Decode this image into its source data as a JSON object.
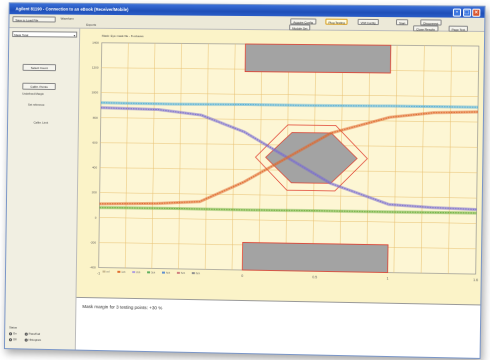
{
  "window": {
    "title": "Agilent 81190 - Connection to an eBook (Receiver/Mobile)"
  },
  "toolbar": {
    "left_button": "Save to Load File",
    "select_value": "Mask Total",
    "subtab": "Waveform",
    "small_label": "Exports",
    "buttons": [
      "Acquire Config",
      "Plug Testing",
      "VIM Config",
      "Start",
      "Disconnect"
    ],
    "row2_buttons": [
      "Module Set",
      "Close Results",
      "Page Test"
    ]
  },
  "sidebar": {
    "buttons": [
      "Select Count",
      "Calibr. Points"
    ],
    "labels": [
      "Undefined Margin",
      "Set reference",
      "Calibr. Limit"
    ],
    "status_label": "Status",
    "radio_options": [
      "On",
      "Off",
      "Pass/Fail",
      "Histogram"
    ]
  },
  "chart_data": {
    "type": "line",
    "subtitle": "Mask: Eye mask file - 8 octaves",
    "xlim": [
      -1,
      1.6
    ],
    "ylim": [
      -400,
      1400
    ],
    "x_ticks": [
      "-1",
      "0",
      "0.5",
      "1",
      "1.6"
    ],
    "y_ticks": [
      "1400",
      "1200",
      "1000",
      "800",
      "600",
      "400",
      "200",
      "0",
      "-200",
      "-400"
    ],
    "grid": true,
    "legend_items": [
      "ref",
      "1ch",
      "2ch",
      "3ch",
      "4ch",
      "5ch",
      "6ch"
    ],
    "legend_colors": [
      "#c8b890",
      "#e07030",
      "#b0a0e0",
      "#60b060",
      "#6090d0",
      "#d08080",
      "#909090"
    ],
    "mask_color": "#a3a3a3",
    "mask_border_color": "#e04030",
    "series": [
      {
        "x": [
          -1,
          -0.6,
          -0.3,
          0,
          0.3,
          0.6,
          1,
          1.3,
          1.6
        ],
        "y": [
          880,
          870,
          830,
          700,
          500,
          300,
          140,
          120,
          110
        ],
        "color": "#7a6ed0"
      },
      {
        "x": [
          -1,
          -0.6,
          -0.3,
          0,
          0.3,
          0.6,
          1,
          1.3,
          1.6
        ],
        "y": [
          110,
          120,
          140,
          300,
          500,
          700,
          830,
          870,
          880
        ],
        "color": "#e06a30"
      },
      {
        "x": [
          -1,
          -0.5,
          0,
          0.5,
          1,
          1.6
        ],
        "y": [
          920,
          915,
          918,
          916,
          919,
          917
        ],
        "color": "#58b0d8"
      },
      {
        "x": [
          -1,
          -0.5,
          0,
          0.5,
          1,
          1.6
        ],
        "y": [
          80,
          82,
          79,
          81,
          80,
          82
        ],
        "color": "#70b040"
      }
    ]
  },
  "message": "Mask margin for 3 testing points: +30 %"
}
